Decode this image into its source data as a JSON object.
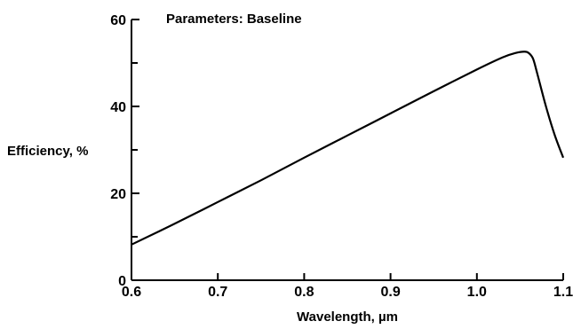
{
  "chart_data": {
    "type": "line",
    "title": "",
    "annotation": "Parameters:  Baseline",
    "xlabel": "Wavelength, µm",
    "ylabel": "Efficiency, %",
    "xlim": [
      0.6,
      1.1
    ],
    "ylim": [
      0,
      60
    ],
    "x_ticks": [
      0.6,
      0.7,
      0.8,
      0.9,
      1.0,
      1.1
    ],
    "x_tick_labels": [
      "0.6",
      "0.7",
      "0.8",
      "0.9",
      "1.0",
      "1.1"
    ],
    "y_ticks": [
      0,
      20,
      40,
      60
    ],
    "y_tick_labels": [
      "0",
      "20",
      "40",
      "60"
    ],
    "y_minor_ticks": [
      10,
      30,
      50
    ],
    "grid": false,
    "series": [
      {
        "x": [
          0.6,
          0.65,
          0.7,
          0.75,
          0.8,
          0.85,
          0.9,
          0.95,
          1.0,
          1.03,
          1.045,
          1.055,
          1.06,
          1.065,
          1.07,
          1.08,
          1.09,
          1.1
        ],
        "y": [
          8.2,
          13.0,
          18.0,
          23.0,
          28.2,
          33.3,
          38.4,
          43.5,
          48.5,
          51.3,
          52.3,
          52.6,
          52.3,
          51.0,
          47.5,
          40.0,
          33.5,
          28.2
        ]
      }
    ]
  }
}
